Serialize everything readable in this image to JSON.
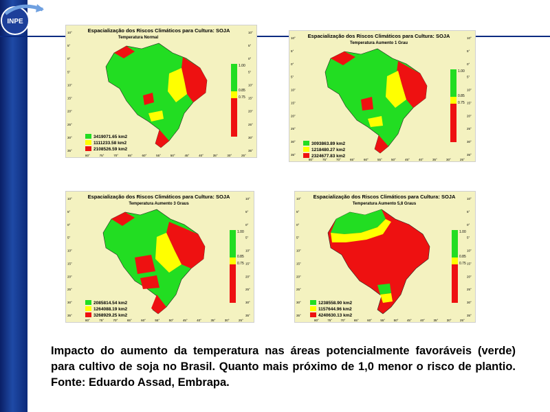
{
  "logo": {
    "text": "INPE"
  },
  "axis": {
    "lat_labels": [
      "10°",
      "5°",
      "0°",
      "5°",
      "10°",
      "15°",
      "20°",
      "25°",
      "30°",
      "35°"
    ],
    "lon_labels": [
      "80°",
      "75°",
      "70°",
      "65°",
      "60°",
      "55°",
      "50°",
      "45°",
      "40°",
      "35°",
      "30°",
      "25°"
    ]
  },
  "scale": {
    "top": "1.00",
    "mid1": "0.85",
    "mid2": "0.75"
  },
  "maps": [
    {
      "title": "Espacialização dos Riscos Climáticos para Cultura: SOJA",
      "subtitle": "Temperatura Normal",
      "legend": [
        "3419071.65 km2",
        "1111233.58 km2",
        "2108526.59 km2"
      ]
    },
    {
      "title": "Espacialização dos Riscos Climáticos para Cultura: SOJA",
      "subtitle": "Temperatura Aumento 1 Grau",
      "legend": [
        "3093863.89 km2",
        "1218480.27 km2",
        "2324677.83 km2"
      ]
    },
    {
      "title": "Espacialização dos Riscos Climáticos para Cultura: SOJA",
      "subtitle": "Temperatura Aumento 3 Graus",
      "legend": [
        "2085814.54 km2",
        "1264088.19 km2",
        "3268929.25 km2"
      ]
    },
    {
      "title": "Espacialização dos Riscos Climáticos para Cultura: SOJA",
      "subtitle": "Temperatura Aumento 5,8 Graus",
      "legend": [
        "1238558.90 km2",
        "1157644.96 km2",
        "4240630.13 km2"
      ]
    }
  ],
  "colors": {
    "green": "#22dd22",
    "yellow": "#ffff00",
    "red": "#ee1111",
    "background": "#f4f2c0"
  },
  "caption": "Impacto do aumento da temperatura nas áreas potencialmente favoráveis (verde) para cultivo de soja no Brasil. Quanto mais próximo de 1,0 menor o risco de plantio. Fonte: Eduardo Assad, Embrapa."
}
